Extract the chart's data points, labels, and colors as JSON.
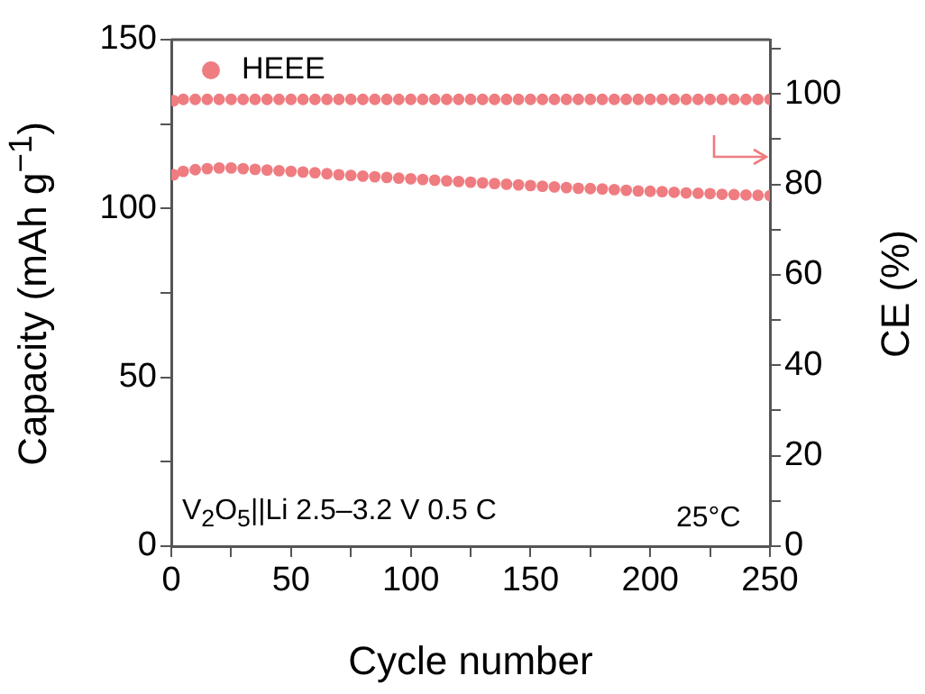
{
  "chart_data": {
    "type": "scatter",
    "xlabel": "Cycle number",
    "ylabel": "Capacity (mAh g$^{−1}$)",
    "y2label": "CE (%)",
    "xlim": [
      0,
      250
    ],
    "xticks": [
      0,
      {
        "value": 25,
        "label": null
      },
      50,
      {
        "value": 75,
        "label": null
      },
      100,
      {
        "value": 125,
        "label": null
      },
      150,
      {
        "value": 175,
        "label": null
      },
      200,
      {
        "value": 225,
        "label": null
      },
      250
    ],
    "ylim": [
      0,
      150
    ],
    "yticks": [
      0,
      {
        "value": 25,
        "label": null
      },
      50,
      {
        "value": 75,
        "label": null
      },
      100,
      {
        "value": 125,
        "label": null
      },
      150
    ],
    "y2lim": [
      0,
      112
    ],
    "y2ticks": [
      0,
      {
        "value": 10,
        "label": null
      },
      20,
      {
        "value": 30,
        "label": null
      },
      40,
      {
        "value": 50,
        "label": null
      },
      60,
      {
        "value": 70,
        "label": null
      },
      80,
      {
        "value": 90,
        "label": null
      },
      100,
      {
        "value": 110,
        "label": null
      }
    ],
    "marker": "circle",
    "legend": "top left",
    "grid": false,
    "annotations": [
      "V$_{2}$O$_{5}$||Li 2.5–3.2 V 0.5 C",
      "25°C"
    ],
    "series": [
      {
        "name": "HEEE",
        "color": "#ef7c80",
        "x": [
          1,
          5,
          10,
          15,
          20,
          25,
          30,
          35,
          40,
          45,
          50,
          55,
          60,
          65,
          70,
          75,
          80,
          85,
          90,
          95,
          100,
          105,
          110,
          115,
          120,
          125,
          130,
          135,
          140,
          145,
          150,
          155,
          160,
          165,
          170,
          175,
          180,
          185,
          190,
          195,
          200,
          205,
          210,
          215,
          220,
          225,
          230,
          235,
          240,
          245,
          250
        ],
        "values": [
          110.0,
          111.0,
          111.5,
          111.8,
          112,
          112,
          111.8,
          111.6,
          111.4,
          111.2,
          111,
          110.8,
          110.6,
          110.3,
          110.0,
          109.8,
          109.6,
          109.4,
          109.2,
          109.0,
          108.8,
          108.6,
          108.4,
          108.2,
          108.0,
          107.8,
          107.6,
          107.4,
          107.2,
          107.0,
          106.8,
          106.6,
          106.4,
          106.2,
          106.0,
          105.9,
          105.8,
          105.6,
          105.4,
          105.2,
          105.1,
          105.0,
          104.8,
          104.6,
          104.5,
          104.4,
          104.2,
          104.1,
          104.0,
          103.9,
          103.8
        ]
      },
      {
        "color": "#ef7c80",
        "axis": "y2",
        "x": [
          1,
          5,
          10,
          15,
          20,
          25,
          30,
          35,
          40,
          45,
          50,
          55,
          60,
          65,
          70,
          75,
          80,
          85,
          90,
          95,
          100,
          105,
          110,
          115,
          120,
          125,
          130,
          135,
          140,
          145,
          150,
          155,
          160,
          165,
          170,
          175,
          180,
          185,
          190,
          195,
          200,
          205,
          210,
          215,
          220,
          225,
          230,
          235,
          240,
          245,
          250
        ],
        "values": [
          98.5,
          98.8,
          98.8,
          98.8,
          98.8,
          98.8,
          98.8,
          98.8,
          98.8,
          98.8,
          98.8,
          98.8,
          98.8,
          98.8,
          98.8,
          98.8,
          98.8,
          98.8,
          98.8,
          98.8,
          98.8,
          98.8,
          98.8,
          98.8,
          98.8,
          98.8,
          98.8,
          98.8,
          98.8,
          98.8,
          98.8,
          98.8,
          98.8,
          98.8,
          98.8,
          98.8,
          98.8,
          98.8,
          98.8,
          98.8,
          98.8,
          98.8,
          98.8,
          98.8,
          98.8,
          98.8,
          98.8,
          98.8,
          98.8,
          98.8,
          98.8
        ]
      }
    ]
  }
}
